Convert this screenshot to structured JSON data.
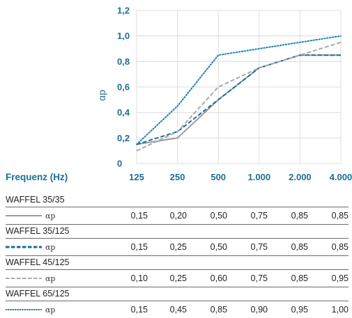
{
  "chart_data": {
    "type": "line",
    "categories": [
      "125",
      "250",
      "500",
      "1.000",
      "2.000",
      "4.000"
    ],
    "xlabel": "Frequenz (Hz)",
    "ylabel": "αp",
    "ylim": [
      0,
      1.2
    ],
    "yticks": [
      "0",
      "0,2",
      "0,4",
      "0,6",
      "0,8",
      "1,0",
      "1,2"
    ],
    "grid": true,
    "series": [
      {
        "name": "WAFFEL 35/35",
        "style": "solid",
        "color": "#9a9a9a",
        "values": [
          0.15,
          0.2,
          0.5,
          0.75,
          0.85,
          0.85
        ]
      },
      {
        "name": "WAFFEL 35/125",
        "style": "dashed",
        "color": "#1a6e96",
        "values": [
          0.15,
          0.25,
          0.5,
          0.75,
          0.85,
          0.85
        ]
      },
      {
        "name": "WAFFEL 45/125",
        "style": "dashed-light",
        "color": "#a9a9a9",
        "values": [
          0.1,
          0.25,
          0.6,
          0.75,
          0.85,
          0.95
        ]
      },
      {
        "name": "WAFFEL 65/125",
        "style": "dotted",
        "color": "#1a82b4",
        "values": [
          0.15,
          0.45,
          0.85,
          0.9,
          0.95,
          1.0
        ]
      }
    ]
  },
  "table": {
    "groups": [
      {
        "title": "WAFFEL 35/35",
        "symbol": "αp",
        "values": [
          "0,15",
          "0,20",
          "0,50",
          "0,75",
          "0,85",
          "0,85"
        ]
      },
      {
        "title": "WAFFEL 35/125",
        "symbol": "αp",
        "values": [
          "0,15",
          "0,25",
          "0,50",
          "0,75",
          "0,85",
          "0,85"
        ]
      },
      {
        "title": "WAFFEL 45/125",
        "symbol": "αp",
        "values": [
          "0,10",
          "0,25",
          "0,60",
          "0,75",
          "0,85",
          "0,95"
        ]
      },
      {
        "title": "WAFFEL 65/125",
        "symbol": "αp",
        "values": [
          "0,15",
          "0,45",
          "0,85",
          "0,90",
          "0,95",
          "1,00"
        ]
      }
    ]
  }
}
